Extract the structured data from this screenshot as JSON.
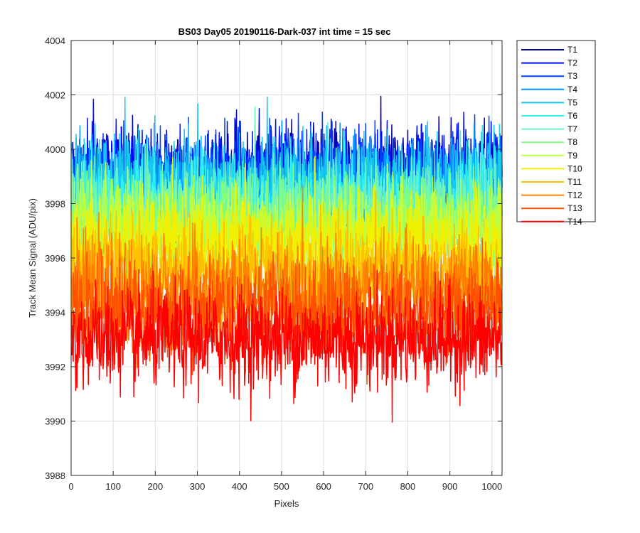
{
  "chart_data": {
    "type": "line",
    "title": "BS03 Day05 20190116-Dark-037 int time = 15 sec",
    "xlabel": "Pixels",
    "ylabel": "Track Mean Signal (ADU/pix)",
    "xlim": [
      0,
      1024
    ],
    "ylim": [
      3988,
      4004
    ],
    "xticks": [
      0,
      100,
      200,
      300,
      400,
      500,
      600,
      700,
      800,
      900,
      1000
    ],
    "yticks": [
      3988,
      3990,
      3992,
      3994,
      3996,
      3998,
      4000,
      4002,
      4004
    ],
    "grid": true,
    "legend_position": "outside-top-right",
    "x_points": 1024,
    "series": [
      {
        "name": "T1",
        "color": "#0000a8",
        "approx_mean": 3999.0,
        "approx_spread": 0.9
      },
      {
        "name": "T2",
        "color": "#0010ff",
        "approx_mean": 3999.0,
        "approx_spread": 0.9
      },
      {
        "name": "T3",
        "color": "#0040ff",
        "approx_mean": 3998.7,
        "approx_spread": 0.9
      },
      {
        "name": "T4",
        "color": "#0090ff",
        "approx_mean": 3998.5,
        "approx_spread": 0.9
      },
      {
        "name": "T5",
        "color": "#18c8f0",
        "approx_mean": 3998.7,
        "approx_spread": 0.9
      },
      {
        "name": "T6",
        "color": "#30f0f0",
        "approx_mean": 3998.0,
        "approx_spread": 0.9
      },
      {
        "name": "T7",
        "color": "#70f0c0",
        "approx_mean": 3997.7,
        "approx_spread": 0.9
      },
      {
        "name": "T8",
        "color": "#80ff80",
        "approx_mean": 3997.3,
        "approx_spread": 0.9
      },
      {
        "name": "T9",
        "color": "#c0ff40",
        "approx_mean": 3997.0,
        "approx_spread": 0.9
      },
      {
        "name": "T10",
        "color": "#f0f000",
        "approx_mean": 3996.5,
        "approx_spread": 0.9
      },
      {
        "name": "T11",
        "color": "#ffc000",
        "approx_mean": 3995.5,
        "approx_spread": 0.9
      },
      {
        "name": "T12",
        "color": "#ff8000",
        "approx_mean": 3994.8,
        "approx_spread": 0.9
      },
      {
        "name": "T13",
        "color": "#ff5000",
        "approx_mean": 3994.0,
        "approx_spread": 0.9
      },
      {
        "name": "T14",
        "color": "#ff0000",
        "approx_mean": 3993.0,
        "approx_spread": 0.9
      }
    ]
  }
}
